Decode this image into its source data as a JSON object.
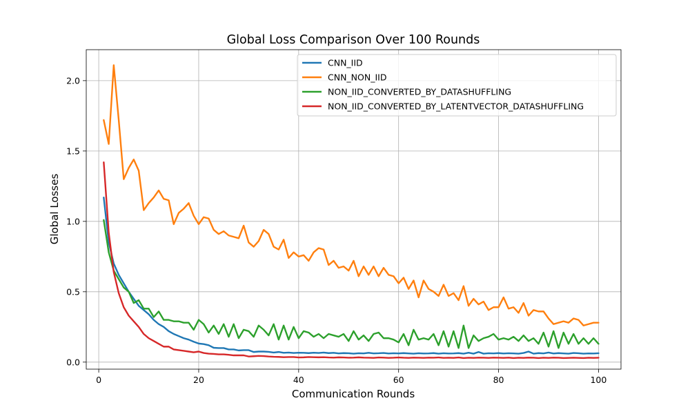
{
  "chart_data": {
    "type": "line",
    "title": "Global Loss Comparison Over 100 Rounds",
    "xlabel": "Communication Rounds",
    "ylabel": "Global Losses",
    "xlim": [
      -2.5,
      104.5
    ],
    "ylim": [
      -0.05,
      2.22
    ],
    "xticks": [
      0,
      20,
      40,
      60,
      80,
      100
    ],
    "xtick_labels": [
      "0",
      "20",
      "40",
      "60",
      "80",
      "100"
    ],
    "yticks": [
      0.0,
      0.5,
      1.0,
      1.5,
      2.0
    ],
    "ytick_labels": [
      "0.0",
      "0.5",
      "1.0",
      "1.5",
      "2.0"
    ],
    "grid": true,
    "legend_position": "upper right",
    "x_start": 1,
    "series": [
      {
        "name": "CNN_IID",
        "color": "#1f77b4",
        "values": [
          1.17,
          0.85,
          0.7,
          0.62,
          0.56,
          0.5,
          0.45,
          0.4,
          0.37,
          0.34,
          0.3,
          0.27,
          0.25,
          0.22,
          0.2,
          0.185,
          0.17,
          0.16,
          0.145,
          0.132,
          0.128,
          0.12,
          0.102,
          0.1,
          0.1,
          0.09,
          0.09,
          0.083,
          0.085,
          0.085,
          0.072,
          0.075,
          0.075,
          0.073,
          0.068,
          0.072,
          0.066,
          0.068,
          0.065,
          0.067,
          0.066,
          0.064,
          0.067,
          0.065,
          0.068,
          0.064,
          0.066,
          0.062,
          0.064,
          0.063,
          0.06,
          0.063,
          0.062,
          0.066,
          0.062,
          0.063,
          0.065,
          0.061,
          0.063,
          0.062,
          0.064,
          0.062,
          0.06,
          0.063,
          0.061,
          0.062,
          0.064,
          0.06,
          0.063,
          0.061,
          0.062,
          0.064,
          0.06,
          0.067,
          0.06,
          0.072,
          0.06,
          0.063,
          0.062,
          0.064,
          0.061,
          0.063,
          0.062,
          0.06,
          0.065,
          0.075,
          0.06,
          0.064,
          0.062,
          0.068,
          0.061,
          0.064,
          0.062,
          0.06,
          0.065,
          0.063,
          0.06,
          0.062,
          0.061,
          0.063
        ]
      },
      {
        "name": "CNN_NON_IID",
        "color": "#ff7f0e",
        "values": [
          1.72,
          1.55,
          2.11,
          1.72,
          1.3,
          1.38,
          1.44,
          1.36,
          1.08,
          1.13,
          1.17,
          1.22,
          1.16,
          1.15,
          0.98,
          1.06,
          1.09,
          1.13,
          1.04,
          0.98,
          1.03,
          1.02,
          0.94,
          0.91,
          0.93,
          0.9,
          0.89,
          0.88,
          0.97,
          0.85,
          0.82,
          0.86,
          0.94,
          0.91,
          0.82,
          0.8,
          0.87,
          0.74,
          0.78,
          0.75,
          0.76,
          0.72,
          0.78,
          0.81,
          0.8,
          0.69,
          0.72,
          0.67,
          0.68,
          0.65,
          0.72,
          0.61,
          0.68,
          0.62,
          0.68,
          0.61,
          0.67,
          0.62,
          0.61,
          0.56,
          0.6,
          0.52,
          0.58,
          0.46,
          0.58,
          0.52,
          0.5,
          0.47,
          0.55,
          0.47,
          0.49,
          0.44,
          0.54,
          0.4,
          0.45,
          0.41,
          0.43,
          0.37,
          0.39,
          0.39,
          0.46,
          0.38,
          0.39,
          0.35,
          0.42,
          0.33,
          0.37,
          0.36,
          0.36,
          0.31,
          0.27,
          0.28,
          0.29,
          0.28,
          0.31,
          0.3,
          0.26,
          0.27,
          0.28,
          0.28
        ]
      },
      {
        "name": "NON_IID_CONVERTED_BY_DATASHUFFLING",
        "color": "#2ca02c",
        "values": [
          1.01,
          0.78,
          0.65,
          0.59,
          0.53,
          0.5,
          0.42,
          0.44,
          0.38,
          0.38,
          0.32,
          0.36,
          0.3,
          0.3,
          0.29,
          0.29,
          0.28,
          0.28,
          0.23,
          0.3,
          0.27,
          0.21,
          0.26,
          0.2,
          0.27,
          0.18,
          0.27,
          0.17,
          0.23,
          0.22,
          0.18,
          0.26,
          0.23,
          0.19,
          0.27,
          0.16,
          0.26,
          0.16,
          0.25,
          0.17,
          0.22,
          0.21,
          0.18,
          0.2,
          0.17,
          0.2,
          0.19,
          0.18,
          0.2,
          0.15,
          0.22,
          0.16,
          0.19,
          0.15,
          0.2,
          0.21,
          0.17,
          0.17,
          0.16,
          0.14,
          0.2,
          0.12,
          0.23,
          0.16,
          0.17,
          0.16,
          0.2,
          0.12,
          0.22,
          0.11,
          0.22,
          0.1,
          0.26,
          0.1,
          0.19,
          0.15,
          0.17,
          0.18,
          0.2,
          0.16,
          0.17,
          0.16,
          0.18,
          0.15,
          0.19,
          0.15,
          0.17,
          0.13,
          0.21,
          0.11,
          0.22,
          0.1,
          0.21,
          0.13,
          0.2,
          0.13,
          0.17,
          0.13,
          0.17,
          0.13
        ]
      },
      {
        "name": "NON_IID_CONVERTED_BY_LATENTVECTOR_DATASHUFFLING",
        "color": "#d62728",
        "values": [
          1.42,
          0.92,
          0.64,
          0.49,
          0.39,
          0.33,
          0.29,
          0.25,
          0.2,
          0.17,
          0.15,
          0.13,
          0.11,
          0.11,
          0.09,
          0.085,
          0.08,
          0.075,
          0.07,
          0.075,
          0.065,
          0.06,
          0.058,
          0.055,
          0.055,
          0.052,
          0.048,
          0.048,
          0.048,
          0.04,
          0.042,
          0.044,
          0.043,
          0.04,
          0.038,
          0.037,
          0.035,
          0.036,
          0.036,
          0.033,
          0.034,
          0.036,
          0.035,
          0.034,
          0.035,
          0.033,
          0.032,
          0.034,
          0.033,
          0.031,
          0.032,
          0.034,
          0.032,
          0.031,
          0.03,
          0.033,
          0.032,
          0.03,
          0.031,
          0.033,
          0.031,
          0.03,
          0.032,
          0.031,
          0.03,
          0.032,
          0.031,
          0.033,
          0.03,
          0.031,
          0.03,
          0.033,
          0.029,
          0.031,
          0.03,
          0.032,
          0.031,
          0.03,
          0.032,
          0.031,
          0.03,
          0.032,
          0.029,
          0.031,
          0.03,
          0.032,
          0.031,
          0.029,
          0.031,
          0.03,
          0.032,
          0.031,
          0.029,
          0.03,
          0.031,
          0.03,
          0.029,
          0.031,
          0.03,
          0.031
        ]
      }
    ]
  }
}
